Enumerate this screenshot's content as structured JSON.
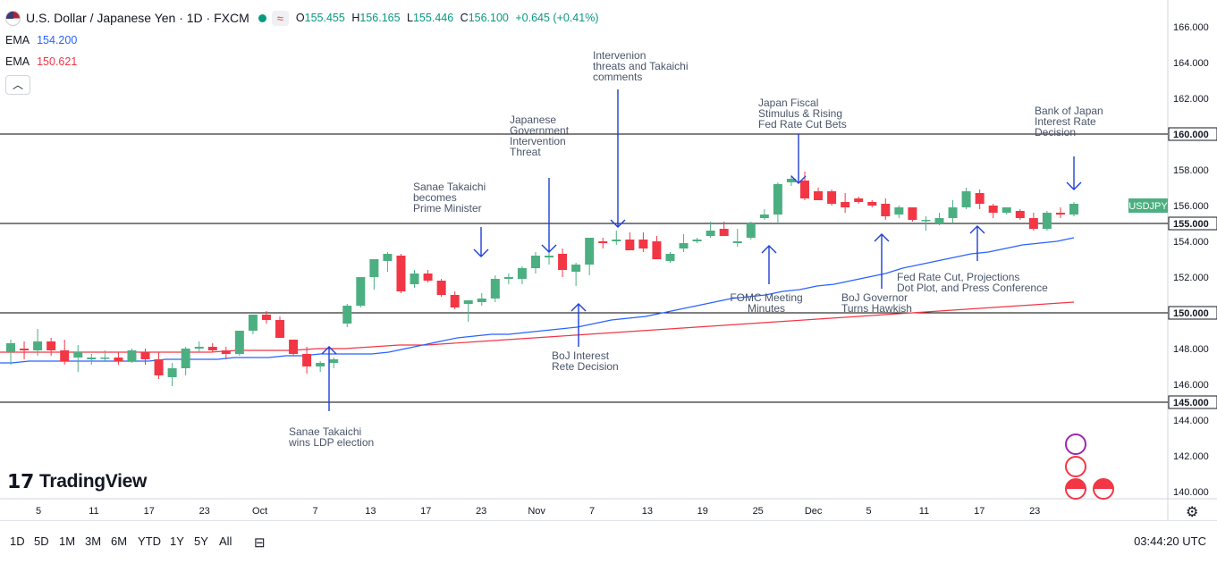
{
  "header": {
    "title": "U.S. Dollar / Japanese Yen · 1D · FXCM",
    "open_label": "O",
    "open": "155.455",
    "high_label": "H",
    "high": "156.165",
    "low_label": "L",
    "low": "155.446",
    "close_label": "C",
    "close": "156.100",
    "change": "+0.645 (+0.41%)"
  },
  "indicators": [
    {
      "label": "EMA",
      "value": "154.200",
      "color": "#2962ff"
    },
    {
      "label": "EMA",
      "value": "150.621",
      "color": "#f23645"
    }
  ],
  "chart_data": {
    "type": "candlestick",
    "symbol_label": "USDJPY",
    "last_price": "156.000",
    "y_axis": {
      "range": [
        139.6,
        167.0
      ],
      "ticks": [
        "166.000",
        "164.000",
        "162.000",
        "160.000",
        "158.000",
        "156.000",
        "155.000",
        "154.000",
        "152.000",
        "150.000",
        "148.000",
        "146.000",
        "145.000",
        "144.000",
        "142.000",
        "140.000"
      ]
    },
    "horizontal_levels": [
      160.0,
      155.0,
      150.0,
      145.0
    ],
    "x_axis": {
      "ticks": [
        "5",
        "11",
        "17",
        "23",
        "Oct",
        "7",
        "13",
        "17",
        "23",
        "Nov",
        "7",
        "13",
        "19",
        "25",
        "Dec",
        "5",
        "11",
        "17",
        "23"
      ]
    },
    "candles": [
      [
        147.8,
        148.5,
        147.1,
        148.3
      ],
      [
        148.0,
        148.4,
        147.4,
        147.9
      ],
      [
        147.9,
        149.1,
        147.6,
        148.4
      ],
      [
        148.4,
        148.6,
        147.6,
        147.9
      ],
      [
        147.9,
        148.5,
        147.1,
        147.3
      ],
      [
        147.5,
        148.2,
        146.7,
        147.8
      ],
      [
        147.4,
        147.7,
        147.1,
        147.5
      ],
      [
        147.5,
        147.9,
        147.3,
        147.5
      ],
      [
        147.5,
        147.8,
        147.1,
        147.3
      ],
      [
        147.3,
        148.0,
        147.2,
        147.9
      ],
      [
        147.8,
        148.0,
        147.1,
        147.4
      ],
      [
        147.4,
        147.8,
        146.3,
        146.5
      ],
      [
        146.4,
        147.2,
        145.9,
        146.9
      ],
      [
        146.9,
        148.1,
        146.5,
        148.0
      ],
      [
        148.0,
        148.4,
        147.8,
        148.1
      ],
      [
        148.1,
        148.3,
        147.8,
        147.9
      ],
      [
        147.9,
        148.1,
        147.4,
        147.7
      ],
      [
        147.7,
        149.0,
        147.6,
        149.0
      ],
      [
        149.0,
        149.9,
        148.8,
        149.9
      ],
      [
        149.9,
        150.1,
        149.4,
        149.6
      ],
      [
        149.6,
        149.8,
        148.6,
        148.6
      ],
      [
        148.5,
        148.5,
        147.6,
        147.7
      ],
      [
        147.7,
        148.1,
        146.6,
        147.0
      ],
      [
        147.0,
        147.3,
        146.7,
        147.2
      ],
      [
        147.2,
        147.5,
        146.9,
        147.4
      ],
      [
        149.4,
        150.5,
        149.2,
        150.4
      ],
      [
        150.4,
        152.0,
        150.3,
        152.0
      ],
      [
        152.0,
        153.0,
        151.3,
        153.0
      ],
      [
        152.9,
        153.4,
        152.3,
        153.3
      ],
      [
        153.2,
        153.3,
        151.1,
        151.2
      ],
      [
        151.6,
        152.4,
        151.4,
        152.2
      ],
      [
        152.2,
        152.4,
        151.7,
        151.8
      ],
      [
        151.8,
        151.9,
        150.9,
        151.0
      ],
      [
        151.0,
        151.2,
        150.2,
        150.3
      ],
      [
        150.5,
        150.6,
        149.5,
        150.7
      ],
      [
        150.6,
        151.1,
        150.4,
        150.8
      ],
      [
        150.8,
        152.1,
        150.6,
        151.9
      ],
      [
        151.9,
        152.2,
        151.6,
        152.0
      ],
      [
        151.9,
        152.6,
        151.6,
        152.5
      ],
      [
        152.5,
        153.4,
        152.2,
        153.2
      ],
      [
        153.1,
        153.4,
        152.7,
        153.2
      ],
      [
        153.3,
        153.6,
        152.0,
        152.4
      ],
      [
        152.3,
        152.8,
        151.5,
        152.7
      ],
      [
        152.7,
        154.1,
        152.1,
        154.2
      ],
      [
        154.0,
        154.2,
        153.6,
        153.9
      ],
      [
        154.0,
        154.6,
        153.8,
        154.1
      ],
      [
        154.1,
        154.5,
        153.5,
        153.5
      ],
      [
        154.1,
        154.5,
        153.4,
        153.6
      ],
      [
        154.0,
        154.3,
        153.0,
        153.0
      ],
      [
        152.9,
        153.4,
        152.8,
        153.3
      ],
      [
        153.6,
        154.4,
        153.4,
        153.9
      ],
      [
        154.0,
        154.2,
        153.9,
        154.1
      ],
      [
        154.3,
        155.1,
        154.2,
        154.6
      ],
      [
        154.7,
        155.1,
        154.5,
        154.3
      ],
      [
        153.9,
        154.7,
        153.7,
        154.0
      ],
      [
        154.2,
        155.1,
        154.1,
        155.0
      ],
      [
        155.3,
        155.8,
        155.2,
        155.5
      ],
      [
        155.5,
        157.3,
        155.0,
        157.2
      ],
      [
        157.3,
        157.7,
        157.1,
        157.5
      ],
      [
        157.4,
        157.9,
        156.3,
        156.4
      ],
      [
        156.8,
        157.0,
        156.3,
        156.3
      ],
      [
        156.8,
        156.9,
        156.0,
        156.1
      ],
      [
        156.2,
        156.7,
        155.6,
        155.9
      ],
      [
        156.4,
        156.5,
        156.1,
        156.2
      ],
      [
        156.2,
        156.3,
        155.9,
        156.0
      ],
      [
        156.1,
        156.4,
        155.2,
        155.4
      ],
      [
        155.5,
        156.0,
        155.3,
        155.9
      ],
      [
        155.9,
        155.9,
        155.1,
        155.2
      ],
      [
        155.2,
        155.4,
        154.6,
        155.2
      ],
      [
        155.0,
        155.6,
        154.9,
        155.3
      ],
      [
        155.3,
        156.3,
        155.0,
        155.9
      ],
      [
        155.9,
        157.0,
        155.8,
        156.8
      ],
      [
        156.7,
        156.9,
        155.8,
        156.1
      ],
      [
        156.0,
        156.1,
        155.3,
        155.6
      ],
      [
        155.6,
        155.9,
        155.5,
        155.9
      ],
      [
        155.7,
        155.8,
        155.2,
        155.3
      ],
      [
        155.3,
        155.6,
        154.6,
        154.7
      ],
      [
        154.7,
        155.7,
        154.6,
        155.6
      ],
      [
        155.6,
        155.9,
        155.3,
        155.5
      ],
      [
        155.5,
        156.2,
        155.4,
        156.1
      ]
    ],
    "series": [
      {
        "name": "EMA",
        "color": "#2962ff",
        "values": [
          147.2,
          147.2,
          147.3,
          147.3,
          147.3,
          147.3,
          147.3,
          147.3,
          147.3,
          147.3,
          147.4,
          147.4,
          147.4,
          147.4,
          147.5,
          147.5,
          147.5,
          147.6,
          147.6,
          147.7,
          147.7,
          147.7,
          147.7,
          147.8,
          148.0,
          148.2,
          148.4,
          148.6,
          148.7,
          148.8,
          148.8,
          148.9,
          149.0,
          149.1,
          149.2,
          149.4,
          149.6,
          149.7,
          149.8,
          150.0,
          150.2,
          150.4,
          150.6,
          150.8,
          150.9,
          151.0,
          151.2,
          151.3,
          151.5,
          151.6,
          151.8,
          152.0,
          152.2,
          152.5,
          152.7,
          152.9,
          153.1,
          153.3,
          153.4,
          153.6,
          153.8,
          153.9,
          154.0,
          154.2
        ]
      },
      {
        "name": "EMA",
        "color": "#f23645",
        "values": [
          147.8,
          147.8,
          147.8,
          147.8,
          147.8,
          147.8,
          147.8,
          147.8,
          147.8,
          147.9,
          147.9,
          147.9,
          148.0,
          148.0,
          148.1,
          148.2,
          148.2,
          148.3,
          148.4,
          148.5,
          148.6,
          148.7,
          148.8,
          148.9,
          149.0,
          149.1,
          149.2,
          149.3,
          149.4,
          149.5,
          149.6,
          149.7,
          149.8,
          149.9,
          150.0,
          150.1,
          150.2,
          150.3,
          150.4,
          150.5,
          150.6
        ]
      }
    ],
    "annotations": [
      "Sanae Takaichi wins LDP election",
      "Sanae Takaichi becomes Prime Minister",
      "Japanese Government Intervention Threat",
      "Intervenion threats and Takaichi comments",
      "BoJ Interest Rete Decision",
      "FOMC Meeting Minutes",
      "Japan Fiscal Stimulus & Rising Fed Rate Cut Bets",
      "BoJ Governor Turns Hawkish",
      "Fed Rate Cut, Projections Dot Plot, and Press Conference",
      "Bank of Japan Interest Rate Decision"
    ],
    "colors": {
      "up": "#4caf82",
      "down": "#f23645",
      "grid": "#f0f3fa",
      "level": "#000000",
      "annotation": "#1e3fd6"
    }
  },
  "time_ranges": [
    "1D",
    "5D",
    "1M",
    "3M",
    "6M",
    "YTD",
    "1Y",
    "5Y",
    "All"
  ],
  "clock": "03:44:20 UTC",
  "brand": "TradingView"
}
